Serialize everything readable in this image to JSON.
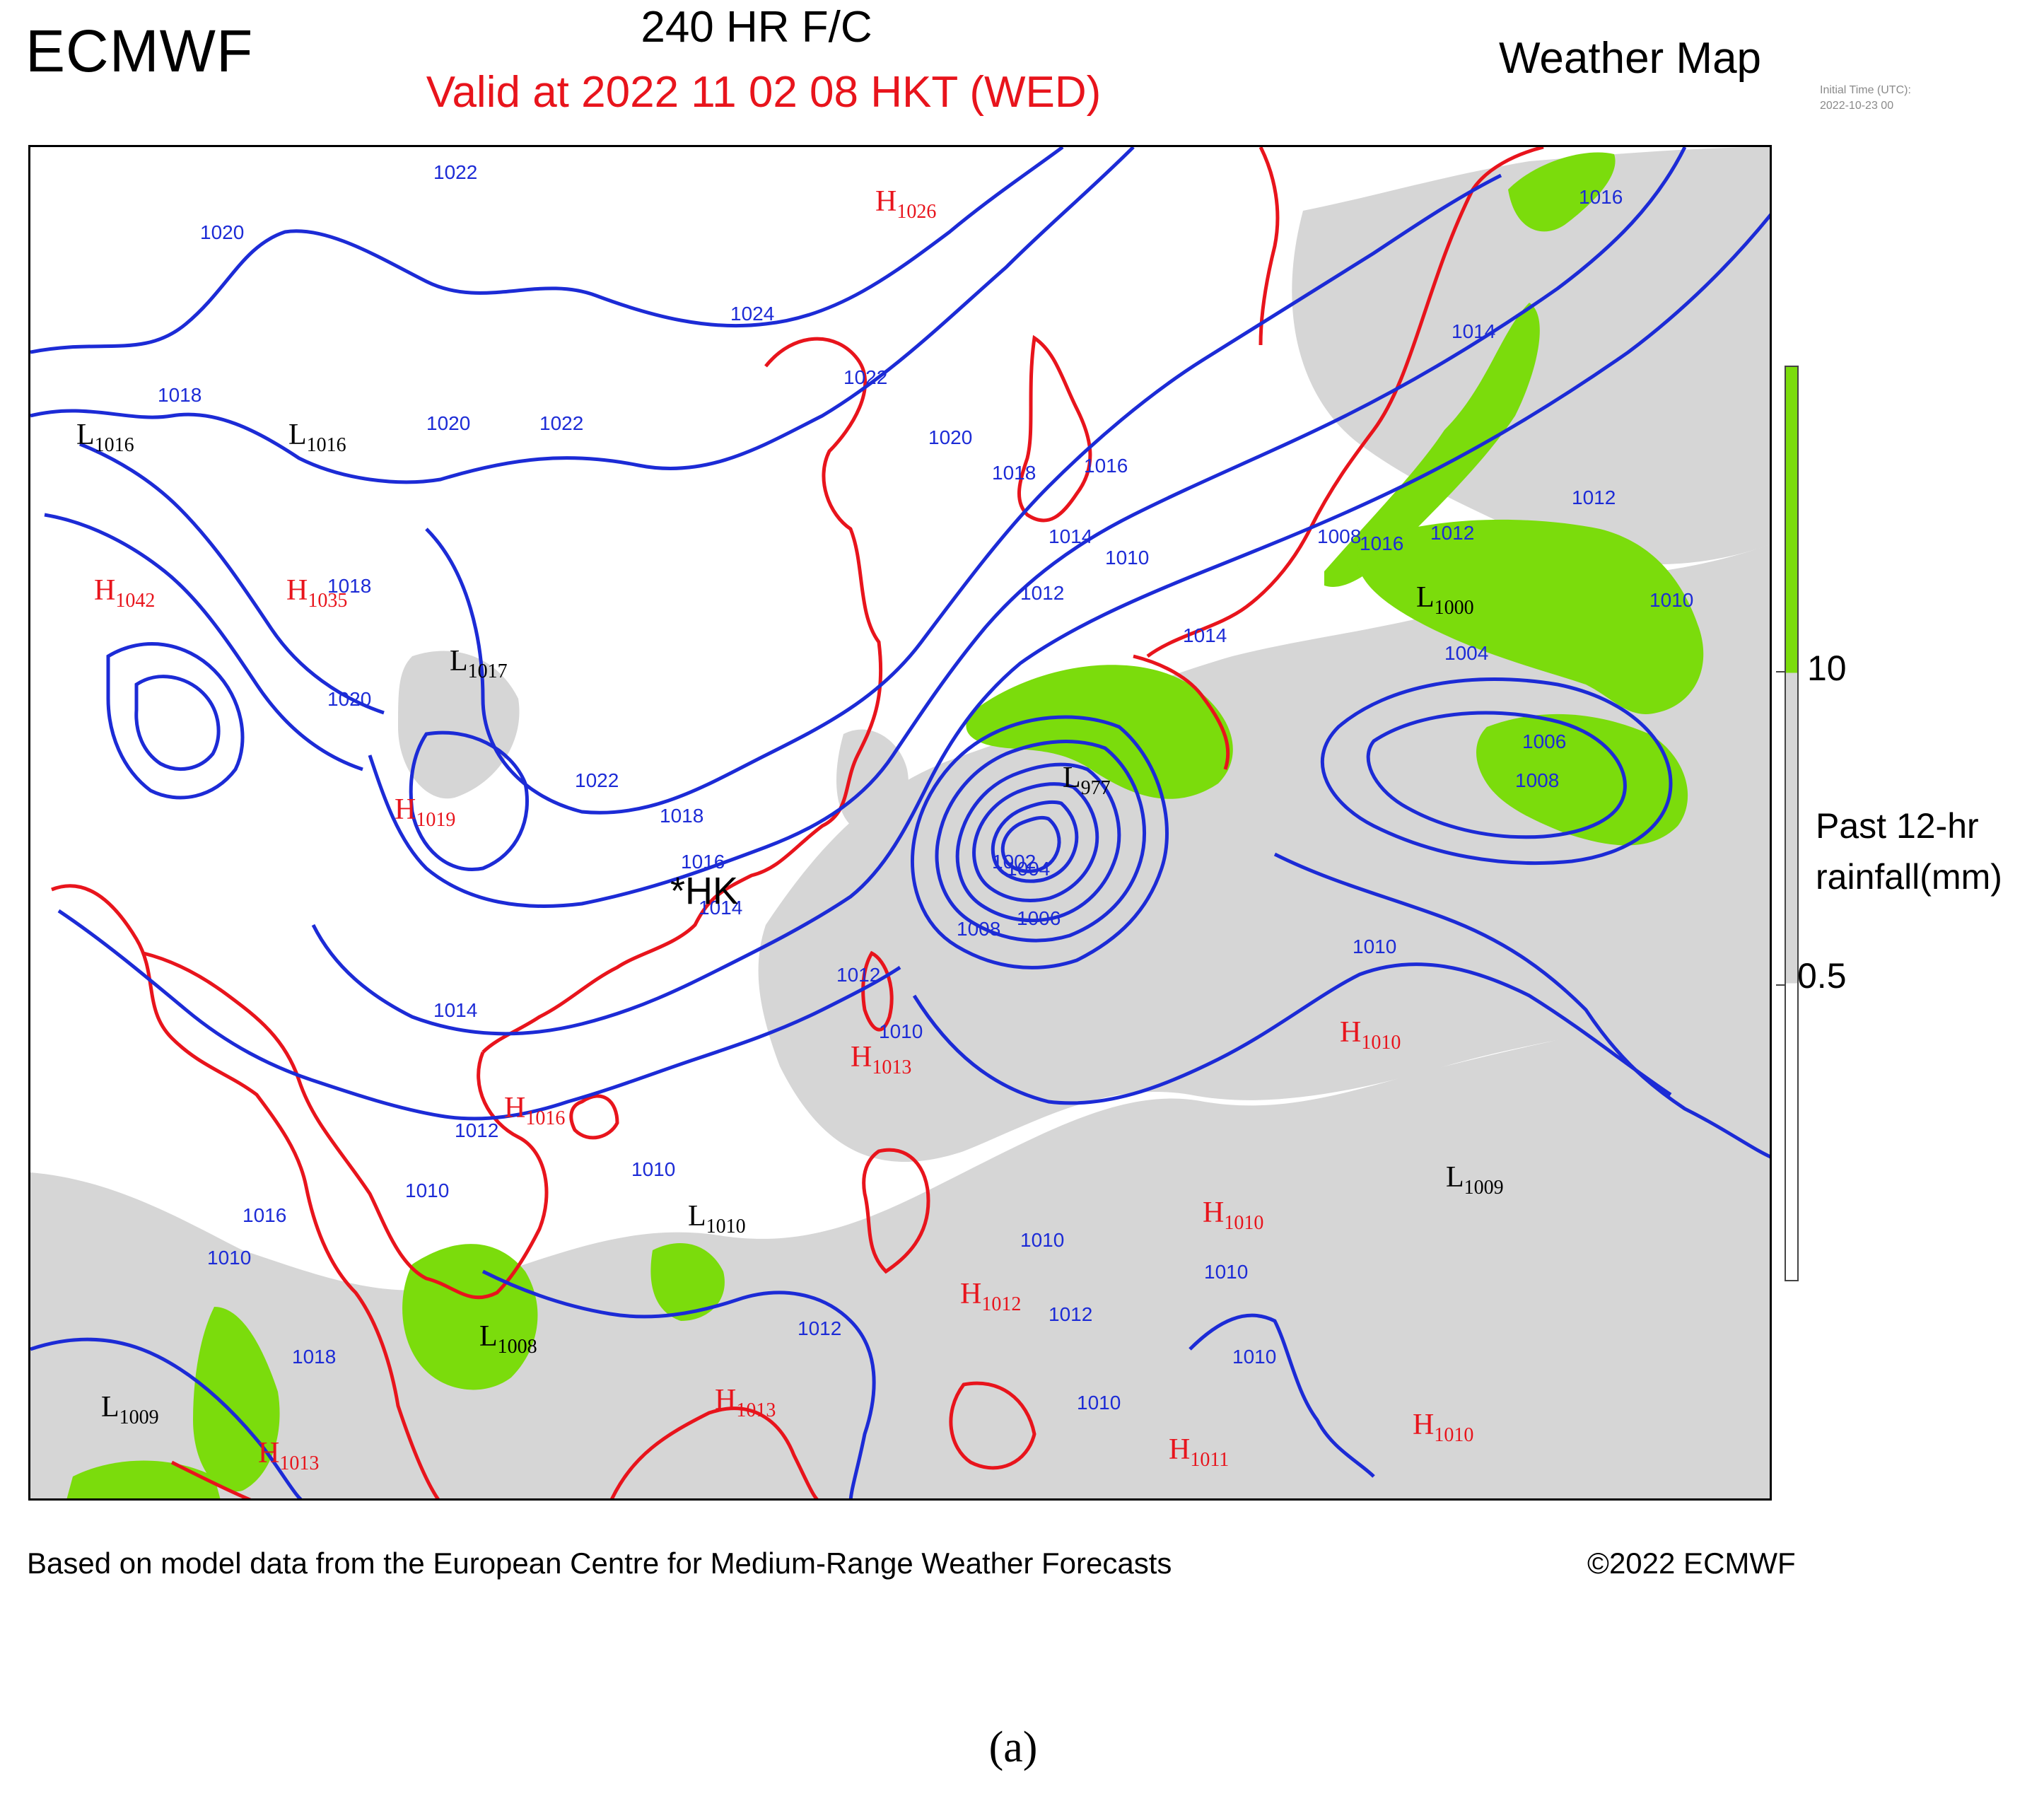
{
  "header": {
    "brand": "ECMWF",
    "forecast_hour": "240 HR F/C",
    "valid_time": "Valid at 2022 11 02  08 HKT (WED)",
    "map_type": "Weather Map",
    "initial_time_label": "Initial Time (UTC):",
    "initial_time_value": "2022-10-23  00"
  },
  "map": {
    "station_marker": "*HK",
    "pressure_centers": [
      {
        "type": "H",
        "value": "1026"
      },
      {
        "type": "L",
        "value": "1016"
      },
      {
        "type": "L",
        "value": "1016"
      },
      {
        "type": "H",
        "value": "1042"
      },
      {
        "type": "H",
        "value": "1035"
      },
      {
        "type": "L",
        "value": "1017"
      },
      {
        "type": "H",
        "value": "1019"
      },
      {
        "type": "L",
        "value": "1000"
      },
      {
        "type": "L",
        "value": "977"
      },
      {
        "type": "H",
        "value": "1016"
      },
      {
        "type": "H",
        "value": "1013"
      },
      {
        "type": "H",
        "value": "1010"
      },
      {
        "type": "L",
        "value": "1009"
      },
      {
        "type": "L",
        "value": "1010"
      },
      {
        "type": "H",
        "value": "1010"
      },
      {
        "type": "H",
        "value": "1012"
      },
      {
        "type": "L",
        "value": "1008"
      },
      {
        "type": "L",
        "value": "1009"
      },
      {
        "type": "H",
        "value": "1013"
      },
      {
        "type": "H",
        "value": "1013"
      },
      {
        "type": "H",
        "value": "1011"
      },
      {
        "type": "H",
        "value": "1010"
      }
    ],
    "isobar_labels": [
      "1022",
      "1020",
      "1024",
      "1018",
      "1020",
      "1022",
      "1022",
      "1020",
      "1018",
      "1016",
      "1014",
      "1012",
      "1010",
      "1016",
      "1018",
      "1020",
      "1022",
      "1014",
      "1012",
      "1018",
      "1016",
      "1014",
      "1012",
      "1010",
      "1014",
      "1008",
      "1004",
      "1006",
      "1008",
      "1010",
      "1012",
      "1014",
      "1016",
      "1010",
      "1012",
      "1008",
      "1004",
      "1002",
      "1006",
      "1010",
      "1010",
      "1010",
      "1010",
      "1010",
      "1010",
      "1012",
      "1018",
      "1016",
      "1012",
      "1010"
    ],
    "colors": {
      "isobar": "#1c2bd6",
      "coastline": "#e8141c",
      "high_label": "#e8141c",
      "low_label": "#000000",
      "rain_light": "#d6d6d6",
      "rain_heavy": "#7bdc0c"
    }
  },
  "legend": {
    "title_line1": "Past 12-hr",
    "title_line2": "rainfall(mm)",
    "thresholds": [
      "10",
      "0.5"
    ]
  },
  "footer": {
    "credit": "Based on model data from the European Centre for Medium-Range Weather Forecasts",
    "copyright": "©2022 ECMWF"
  },
  "caption": "(a)"
}
